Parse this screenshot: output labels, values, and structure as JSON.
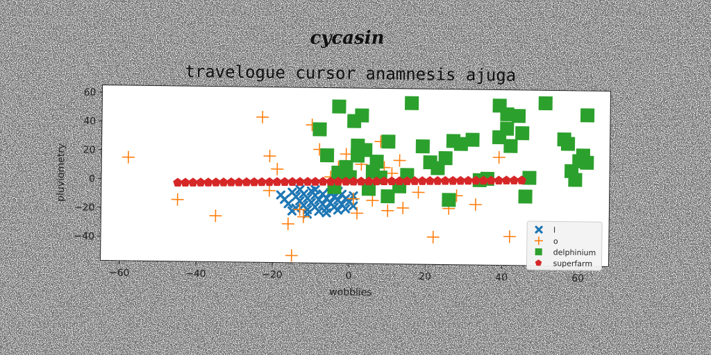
{
  "chart_data": {
    "type": "scatter",
    "suptitle": "cycasin",
    "title": "travelogue cursor anamnesis ajuga",
    "xlabel": "wobblies",
    "ylabel": "pluviometry",
    "xlim": [
      -65,
      68
    ],
    "ylim": [
      -57,
      65
    ],
    "xticks": [
      -60,
      -40,
      -20,
      0,
      20,
      40,
      60
    ],
    "yticks": [
      -40,
      -20,
      0,
      20,
      40,
      60
    ],
    "grid": false,
    "legend_position": "lower-right",
    "series": [
      {
        "name": "l",
        "color": "#1f77b4",
        "marker": "x",
        "points": [
          [
            -18,
            -10
          ],
          [
            -17,
            -13
          ],
          [
            -16,
            -16
          ],
          [
            -15,
            -8
          ],
          [
            -14,
            -11
          ],
          [
            -14,
            -19
          ],
          [
            -13,
            -14
          ],
          [
            -12,
            -9
          ],
          [
            -12,
            -17
          ],
          [
            -11,
            -12
          ],
          [
            -11,
            -20
          ],
          [
            -10,
            -15
          ],
          [
            -10,
            -7
          ],
          [
            -9,
            -10
          ],
          [
            -9,
            -18
          ],
          [
            -8,
            -13
          ],
          [
            -8,
            -21
          ],
          [
            -7,
            -9
          ],
          [
            -7,
            -16
          ],
          [
            -6,
            -12
          ],
          [
            -6,
            -19
          ],
          [
            -5,
            -8
          ],
          [
            -5,
            -15
          ],
          [
            -4,
            -11
          ],
          [
            -4,
            -18
          ],
          [
            -3,
            -13
          ],
          [
            -3,
            -20
          ],
          [
            -2,
            -9
          ],
          [
            -2,
            -16
          ],
          [
            -1,
            -12
          ],
          [
            -1,
            -19
          ],
          [
            0,
            -14
          ],
          [
            1,
            -17
          ],
          [
            1,
            -10
          ],
          [
            -13,
            -6
          ],
          [
            -15,
            -21
          ],
          [
            -9,
            -6
          ],
          [
            -6,
            -22
          ],
          [
            -3,
            -7
          ],
          [
            -11,
            -23
          ]
        ]
      },
      {
        "name": "o",
        "color": "#ff7f0e",
        "marker": "plus",
        "points": [
          [
            -58,
            15
          ],
          [
            -45,
            -14
          ],
          [
            -35,
            -25
          ],
          [
            -23,
            44
          ],
          [
            -21,
            17
          ],
          [
            -21,
            -7
          ],
          [
            -19,
            8
          ],
          [
            -16,
            -30
          ],
          [
            -15,
            -52
          ],
          [
            -13,
            -20
          ],
          [
            -12,
            -25
          ],
          [
            -10,
            39
          ],
          [
            -8,
            22
          ],
          [
            -5,
            3
          ],
          [
            -3,
            10
          ],
          [
            -1,
            19
          ],
          [
            1,
            -12
          ],
          [
            2,
            -22
          ],
          [
            3,
            12
          ],
          [
            4,
            22
          ],
          [
            6,
            -13
          ],
          [
            7,
            11
          ],
          [
            8,
            28
          ],
          [
            9,
            10
          ],
          [
            10,
            -20
          ],
          [
            11,
            6
          ],
          [
            13,
            15
          ],
          [
            14,
            -18
          ],
          [
            18,
            -7
          ],
          [
            22,
            -38
          ],
          [
            26,
            -18
          ],
          [
            28,
            -9
          ],
          [
            33,
            -15
          ],
          [
            39,
            18
          ],
          [
            42,
            -37
          ]
        ]
      },
      {
        "name": "delphinium",
        "color": "#2ca02c",
        "marker": "square",
        "points": [
          [
            -8,
            36
          ],
          [
            -6,
            18
          ],
          [
            -4,
            -4
          ],
          [
            -3,
            52
          ],
          [
            -3,
            6
          ],
          [
            -1,
            10
          ],
          [
            0,
            3
          ],
          [
            1,
            42
          ],
          [
            2,
            18
          ],
          [
            2,
            25
          ],
          [
            3,
            46
          ],
          [
            4,
            22
          ],
          [
            5,
            -5
          ],
          [
            6,
            7
          ],
          [
            7,
            14
          ],
          [
            8,
            3
          ],
          [
            10,
            28
          ],
          [
            10,
            -10
          ],
          [
            13,
            -3
          ],
          [
            15,
            5
          ],
          [
            16,
            55
          ],
          [
            19,
            25
          ],
          [
            21,
            14
          ],
          [
            23,
            10
          ],
          [
            25,
            17
          ],
          [
            26,
            -12
          ],
          [
            27,
            29
          ],
          [
            29,
            27
          ],
          [
            32,
            30
          ],
          [
            34,
            2
          ],
          [
            36,
            3
          ],
          [
            39,
            54
          ],
          [
            39,
            32
          ],
          [
            41,
            48
          ],
          [
            41,
            38
          ],
          [
            42,
            26
          ],
          [
            44,
            47
          ],
          [
            45,
            35
          ],
          [
            46,
            -9
          ],
          [
            47,
            4
          ],
          [
            51,
            56
          ],
          [
            56,
            31
          ],
          [
            57,
            28
          ],
          [
            58,
            9
          ],
          [
            59,
            3
          ],
          [
            60,
            16
          ],
          [
            61,
            20
          ],
          [
            62,
            48
          ],
          [
            62,
            15
          ]
        ]
      },
      {
        "name": "superfarm",
        "color": "#d62728",
        "marker": "pentagon",
        "points": [
          [
            -45,
            -2.3
          ],
          [
            -43,
            -2.2
          ],
          [
            -41,
            -2.1
          ],
          [
            -39,
            -2.0
          ],
          [
            -37,
            -1.9
          ],
          [
            -35,
            -1.8
          ],
          [
            -33,
            -1.7
          ],
          [
            -31,
            -1.6
          ],
          [
            -29,
            -1.5
          ],
          [
            -27,
            -1.4
          ],
          [
            -25,
            -1.3
          ],
          [
            -23,
            -1.2
          ],
          [
            -21,
            -1.1
          ],
          [
            -19,
            -1.0
          ],
          [
            -17,
            -0.9
          ],
          [
            -15,
            -0.8
          ],
          [
            -13,
            -0.7
          ],
          [
            -11,
            -0.6
          ],
          [
            -9,
            -0.5
          ],
          [
            -7,
            -0.4
          ],
          [
            -5,
            -0.3
          ],
          [
            -3,
            -0.2
          ],
          [
            -1,
            -0.1
          ],
          [
            1,
            0.0
          ],
          [
            3,
            0.1
          ],
          [
            5,
            0.2
          ],
          [
            7,
            0.3
          ],
          [
            9,
            0.4
          ],
          [
            11,
            0.5
          ],
          [
            13,
            0.6
          ],
          [
            15,
            0.7
          ],
          [
            17,
            0.8
          ],
          [
            19,
            0.9
          ],
          [
            21,
            1.0
          ],
          [
            23,
            1.1
          ],
          [
            25,
            1.2
          ],
          [
            27,
            1.3
          ],
          [
            29,
            1.4
          ],
          [
            31,
            1.5
          ],
          [
            33,
            1.6
          ],
          [
            35,
            1.7
          ],
          [
            37,
            1.8
          ],
          [
            39,
            1.9
          ],
          [
            41,
            2.0
          ],
          [
            43,
            2.1
          ],
          [
            45,
            2.2
          ]
        ]
      }
    ]
  }
}
